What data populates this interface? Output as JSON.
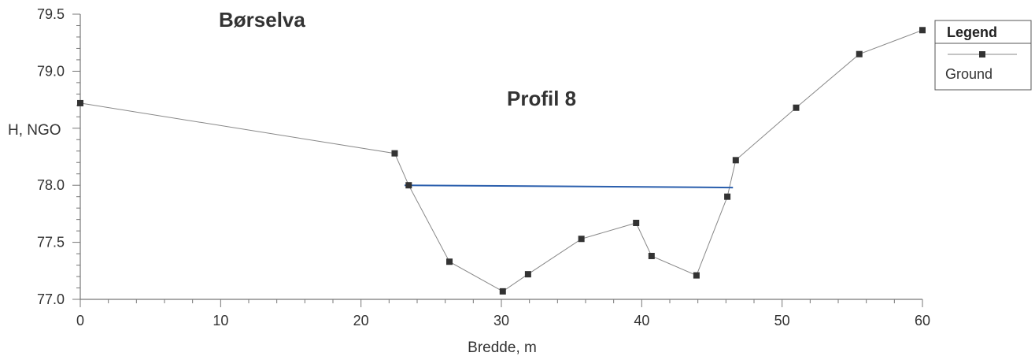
{
  "chart_data": {
    "type": "line",
    "title": "Børselva",
    "subtitle": "Profil 8",
    "xlabel": "Bredde, m",
    "ylabel": "H, NGO",
    "xlim": [
      0,
      60
    ],
    "ylim": [
      77.0,
      79.5
    ],
    "x_ticks": [
      0,
      10,
      20,
      30,
      40,
      50,
      60
    ],
    "y_ticks": [
      77.0,
      77.5,
      78.0,
      78.5,
      79.0,
      79.5
    ],
    "x_tick_labels": [
      "0",
      "10",
      "20",
      "30",
      "40",
      "50",
      "60"
    ],
    "y_tick_labels": [
      "77.0",
      "77.5",
      "78.0",
      "",
      "79.0",
      "79.5"
    ],
    "grid": false,
    "legend": {
      "title": "Legend",
      "placement": "top-right",
      "entries": [
        "Ground"
      ]
    },
    "series": [
      {
        "name": "Ground",
        "color": "#888888",
        "marker_color": "#333333",
        "x": [
          0,
          22.4,
          23.4,
          26.3,
          30.1,
          31.9,
          35.7,
          39.6,
          40.7,
          43.9,
          46.1,
          46.7,
          51.0,
          55.5,
          60.0
        ],
        "y": [
          78.72,
          78.28,
          78.0,
          77.33,
          77.07,
          77.22,
          77.53,
          77.67,
          77.38,
          77.21,
          77.9,
          78.22,
          78.68,
          79.15,
          79.36
        ]
      },
      {
        "color": "#2b5fad",
        "x": [
          23.1,
          46.5
        ],
        "y": [
          78.0,
          77.98
        ]
      }
    ]
  }
}
